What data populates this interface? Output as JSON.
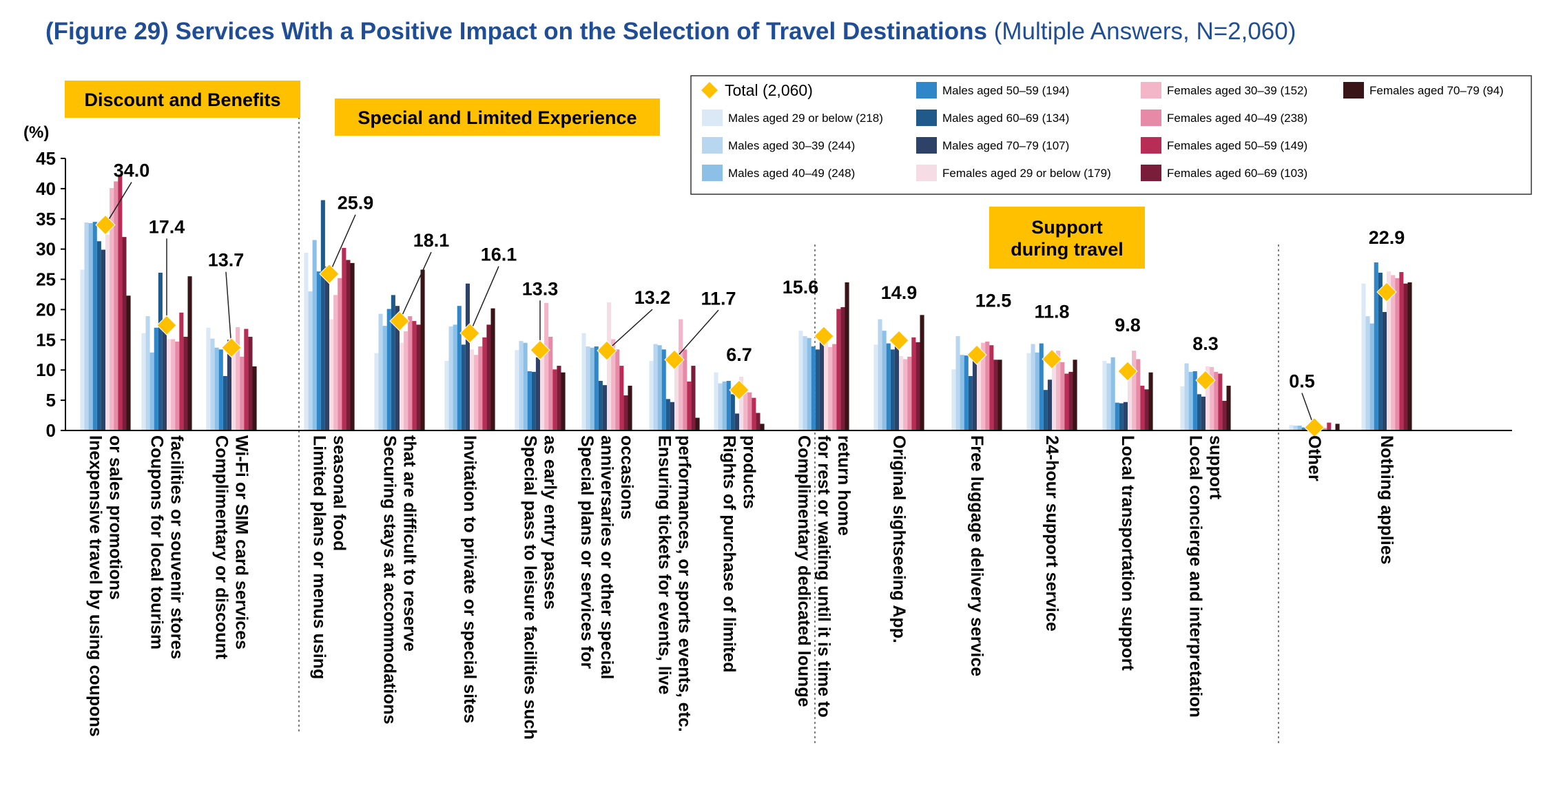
{
  "title": {
    "main": "(Figure 29) Services With a Positive Impact on the Selection of Travel Destinations",
    "sub": "(Multiple Answers, N=2,060)"
  },
  "chart_data": {
    "type": "bar",
    "ylabel": "(%)",
    "ylim": [
      0,
      45
    ],
    "yticks": [
      "0",
      "5",
      "10",
      "15",
      "20",
      "25",
      "30",
      "35",
      "40",
      "45"
    ],
    "sections": [
      {
        "label": "Discount and Benefits",
        "first": 0,
        "last": 2
      },
      {
        "label": "Special and Limited Experience",
        "first": 3,
        "last": 9
      },
      {
        "label": "Support during travel",
        "lines": [
          "Support",
          "during travel"
        ],
        "first": 10,
        "last": 15
      }
    ],
    "categories": [
      {
        "lines": [
          "Inexpensive travel by using coupons",
          "or sales promotions"
        ],
        "total": 34.0,
        "total_label": "34.0"
      },
      {
        "lines": [
          "Coupons for local tourism",
          "facilities or souvenir stores"
        ],
        "total": 17.4,
        "total_label": "17.4"
      },
      {
        "lines": [
          "Complimentary or discount",
          "Wi-Fi or SIM card services"
        ],
        "total": 13.7,
        "total_label": "13.7"
      },
      {
        "lines": [
          "Limited plans or menus using",
          "seasonal food"
        ],
        "total": 25.9,
        "total_label": "25.9"
      },
      {
        "lines": [
          "Securing stays at accommodations",
          "that are difficult to reserve"
        ],
        "total": 18.1,
        "total_label": "18.1"
      },
      {
        "lines": [
          "Invitation to private or special sites"
        ],
        "total": 16.1,
        "total_label": "16.1"
      },
      {
        "lines": [
          "Special pass to leisure facilities such",
          "as early entry passes"
        ],
        "total": 13.3,
        "total_label": "13.3"
      },
      {
        "lines": [
          "Special plans or services for",
          "anniversaries or other special",
          "occasions"
        ],
        "total": 13.2,
        "total_label": "13.2"
      },
      {
        "lines": [
          "Ensuring tickets for events, live",
          "performances, or sports events, etc."
        ],
        "total": 11.7,
        "total_label": "11.7"
      },
      {
        "lines": [
          "Rights of purchase of limited",
          "products"
        ],
        "total": 6.7,
        "total_label": "6.7"
      },
      {
        "lines": [
          "Complimentary dedicated lounge",
          "for rest or waiting until it is time to",
          "return home"
        ],
        "total": 15.6,
        "total_label": "15.6"
      },
      {
        "lines": [
          "Original sightseeing App."
        ],
        "total": 14.9,
        "total_label": "14.9"
      },
      {
        "lines": [
          "Free luggage delivery service"
        ],
        "total": 12.5,
        "total_label": "12.5"
      },
      {
        "lines": [
          "24-hour support service"
        ],
        "total": 11.8,
        "total_label": "11.8"
      },
      {
        "lines": [
          "Local transportation support"
        ],
        "total": 9.8,
        "total_label": "9.8"
      },
      {
        "lines": [
          "Local concierge and interpretation",
          "support"
        ],
        "total": 8.3,
        "total_label": "8.3"
      },
      {
        "lines": [
          "Other"
        ],
        "total": 0.5,
        "total_label": "0.5"
      },
      {
        "lines": [
          "Nothing applies"
        ],
        "total": 22.9,
        "total_label": "22.9"
      }
    ],
    "total_series": {
      "name": "Total (2,060)",
      "color": "#ffc000"
    },
    "series": [
      {
        "name": "Males aged 29 or below (218)",
        "color": "#dbe9f7",
        "values": [
          26.6,
          16.1,
          17.0,
          29.4,
          12.8,
          11.5,
          13.3,
          16.1,
          11.5,
          9.6,
          16.5,
          14.2,
          10.1,
          12.8,
          11.5,
          7.3,
          0.9,
          24.3
        ]
      },
      {
        "name": "Males aged 30–39 (244)",
        "color": "#b9d6f0",
        "values": [
          34.4,
          18.9,
          15.2,
          23.0,
          19.3,
          17.2,
          14.8,
          13.9,
          14.3,
          7.8,
          15.6,
          18.4,
          15.6,
          14.3,
          11.1,
          11.1,
          0.8,
          18.9
        ]
      },
      {
        "name": "Males aged 40–49 (248)",
        "color": "#8cc0e6",
        "values": [
          34.3,
          12.9,
          13.7,
          31.5,
          17.3,
          17.5,
          14.5,
          13.7,
          14.1,
          8.1,
          15.3,
          16.5,
          12.5,
          12.9,
          12.1,
          9.7,
          0.8,
          17.7
        ]
      },
      {
        "name": "Males aged 50–59 (194)",
        "color": "#2f86c8",
        "values": [
          34.5,
          17.0,
          13.4,
          26.3,
          20.1,
          20.6,
          9.8,
          13.9,
          13.4,
          8.2,
          13.9,
          14.4,
          12.4,
          14.4,
          4.6,
          9.8,
          0.5,
          27.8
        ]
      },
      {
        "name": "Males aged 60–69 (134)",
        "color": "#1f5a8a",
        "values": [
          31.3,
          26.1,
          9.0,
          38.1,
          22.4,
          14.2,
          9.7,
          8.2,
          5.2,
          6.0,
          13.4,
          13.4,
          9.0,
          6.7,
          4.5,
          6.0,
          0.0,
          26.1
        ]
      },
      {
        "name": "Males aged 70–79 (107)",
        "color": "#2d4266",
        "values": [
          29.9,
          17.8,
          15.0,
          27.1,
          20.6,
          24.3,
          12.1,
          7.5,
          4.7,
          2.8,
          15.0,
          14.0,
          12.1,
          8.4,
          4.7,
          5.6,
          0.0,
          19.6
        ]
      },
      {
        "name": "Females aged 29 or below (179)",
        "color": "#f6dde5",
        "values": [
          32.4,
          15.1,
          14.0,
          18.4,
          14.5,
          13.4,
          13.4,
          21.2,
          11.7,
          8.9,
          14.5,
          12.3,
          13.4,
          12.8,
          9.5,
          10.6,
          0.6,
          26.3
        ]
      },
      {
        "name": "Females aged 30–39 (152)",
        "color": "#f2b6c8",
        "values": [
          40.1,
          15.1,
          17.1,
          22.4,
          16.4,
          12.5,
          21.1,
          15.1,
          18.4,
          6.6,
          13.8,
          11.8,
          14.5,
          13.2,
          13.2,
          10.5,
          0.0,
          25.7
        ]
      },
      {
        "name": "Females aged 40–49 (238)",
        "color": "#e68aa8",
        "values": [
          41.2,
          14.7,
          12.2,
          25.2,
          18.9,
          13.9,
          15.5,
          13.4,
          13.4,
          6.3,
          14.3,
          12.2,
          14.7,
          11.3,
          11.8,
          9.7,
          0.4,
          25.2
        ]
      },
      {
        "name": "Females aged 50–59 (149)",
        "color": "#b82d55",
        "values": [
          42.3,
          19.5,
          16.8,
          30.2,
          18.1,
          15.4,
          10.1,
          10.7,
          8.1,
          5.4,
          20.1,
          15.4,
          14.1,
          9.4,
          7.4,
          9.4,
          1.3,
          26.2
        ]
      },
      {
        "name": "Females aged 60–69 (103)",
        "color": "#7a1d3a",
        "values": [
          32.0,
          15.5,
          15.5,
          28.2,
          17.5,
          17.5,
          10.7,
          5.8,
          10.7,
          2.9,
          20.4,
          14.6,
          11.7,
          9.7,
          6.8,
          4.9,
          0.0,
          24.3
        ]
      },
      {
        "name": "Females aged 70–79 (94)",
        "color": "#3a1518",
        "values": [
          22.3,
          25.5,
          10.6,
          27.7,
          26.6,
          20.2,
          9.6,
          7.4,
          2.1,
          1.1,
          24.5,
          19.1,
          11.7,
          11.7,
          9.6,
          7.4,
          1.1,
          24.5
        ]
      }
    ]
  }
}
